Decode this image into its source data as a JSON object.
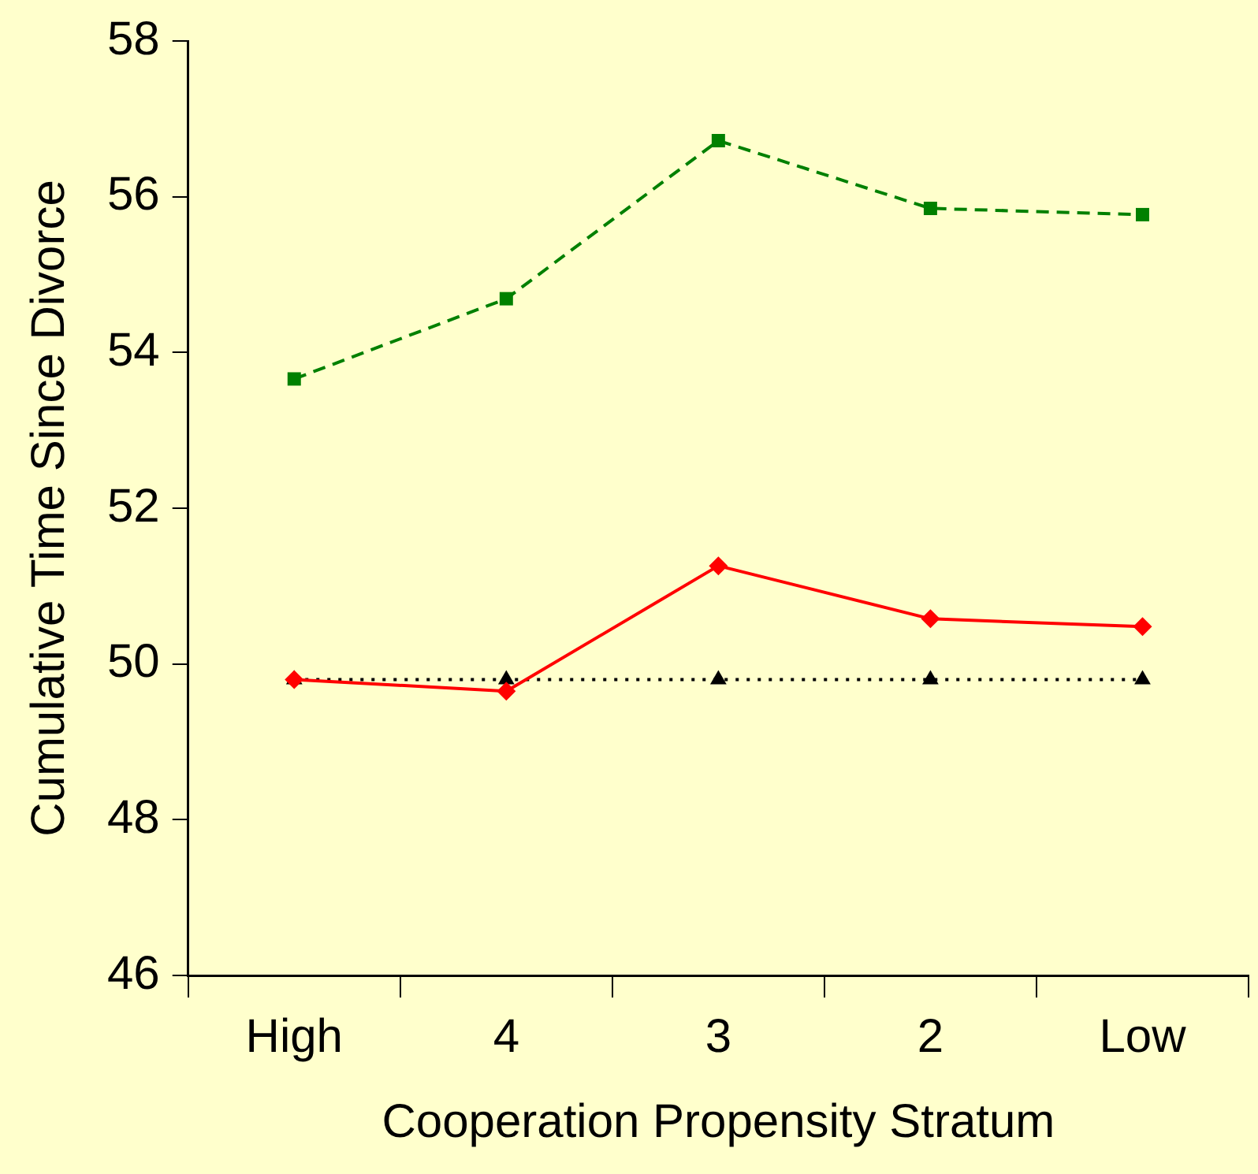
{
  "chart_data": {
    "type": "line",
    "xlabel": "Cooperation Propensity Stratum",
    "ylabel": "Cumulative Time Since Divorce",
    "categories": [
      "High",
      "4",
      "3",
      "2",
      "Low"
    ],
    "series": [
      {
        "color": "#008000",
        "values": [
          53.66,
          54.69,
          56.72,
          55.85,
          55.77
        ],
        "marker": "square",
        "line_style": "dashed"
      },
      {
        "color": "#ff0000",
        "values": [
          49.8,
          49.65,
          51.26,
          50.58,
          50.48
        ],
        "marker": "diamond",
        "line_style": "solid"
      },
      {
        "color": "#000000",
        "values": [
          49.8,
          49.8,
          49.8,
          49.8,
          49.8
        ],
        "marker": "triangle",
        "line_style": "dotted"
      }
    ],
    "ylim": [
      46,
      58
    ],
    "yticks": [
      46,
      48,
      50,
      52,
      54,
      56,
      58
    ],
    "grid": false,
    "legend": false
  }
}
